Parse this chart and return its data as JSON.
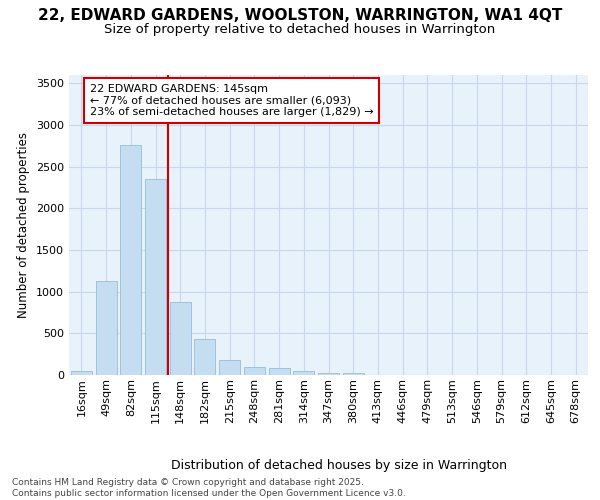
{
  "title1": "22, EDWARD GARDENS, WOOLSTON, WARRINGTON, WA1 4QT",
  "title2": "Size of property relative to detached houses in Warrington",
  "xlabel": "Distribution of detached houses by size in Warrington",
  "ylabel": "Number of detached properties",
  "categories": [
    "16sqm",
    "49sqm",
    "82sqm",
    "115sqm",
    "148sqm",
    "182sqm",
    "215sqm",
    "248sqm",
    "281sqm",
    "314sqm",
    "347sqm",
    "380sqm",
    "413sqm",
    "446sqm",
    "479sqm",
    "513sqm",
    "546sqm",
    "579sqm",
    "612sqm",
    "645sqm",
    "678sqm"
  ],
  "values": [
    50,
    1130,
    2760,
    2350,
    880,
    430,
    175,
    100,
    90,
    50,
    30,
    25,
    5,
    2,
    1,
    0,
    0,
    0,
    0,
    0,
    0
  ],
  "bar_color": "#c5ddf0",
  "bar_edge_color": "#8ab4d4",
  "grid_color": "#c8d8ea",
  "bg_color": "#e8f2fb",
  "vline_color": "#cc0000",
  "vline_x": 4,
  "annotation_text": "22 EDWARD GARDENS: 145sqm\n← 77% of detached houses are smaller (6,093)\n23% of semi-detached houses are larger (1,829) →",
  "annotation_edge_color": "#cc0000",
  "ylim_max": 3600,
  "yticks": [
    0,
    500,
    1000,
    1500,
    2000,
    2500,
    3000,
    3500
  ],
  "footer": "Contains HM Land Registry data © Crown copyright and database right 2025.\nContains public sector information licensed under the Open Government Licence v3.0.",
  "title_fontsize": 11,
  "subtitle_fontsize": 9.5,
  "ylabel_fontsize": 8.5,
  "xlabel_fontsize": 9,
  "tick_fontsize": 8,
  "footer_fontsize": 6.5,
  "ann_fontsize": 8
}
